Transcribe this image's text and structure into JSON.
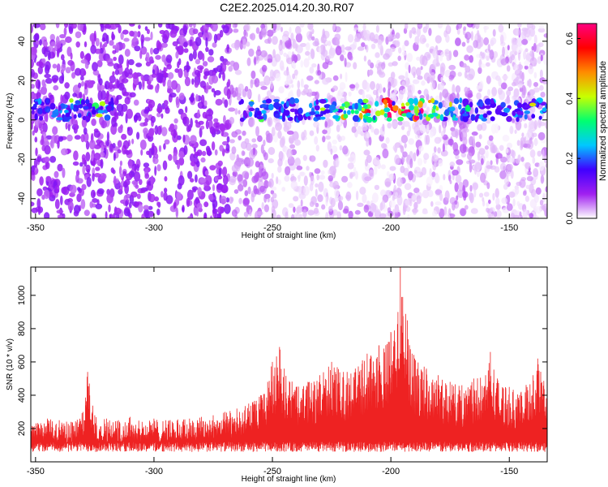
{
  "figure_title": "C2E2.2025.014.20.30.R07",
  "chart_data": [
    {
      "type": "heatmap",
      "xlabel": "Height of straight line (km)",
      "ylabel": "Frequency (Hz)",
      "xlim": [
        -352,
        -134
      ],
      "ylim": [
        -50,
        49
      ],
      "x_ticks": [
        -350,
        -300,
        -250,
        -200,
        -150
      ],
      "y_ticks": [
        -40,
        -20,
        0,
        20,
        40
      ],
      "colorbar": {
        "label": "Normalized spectral amplitude",
        "range": [
          0.0,
          0.65
        ],
        "ticks": [
          0.0,
          0.2,
          0.4,
          0.6
        ],
        "colormap": [
          "#ffffff",
          "#a020f0",
          "#4000ff",
          "#00c8ff",
          "#00ff70",
          "#c8ff00",
          "#ff8c00",
          "#ff0000",
          "#ff0080"
        ]
      },
      "signal_band": {
        "frequency_center_hz": 5,
        "segments": [
          [
            -352,
            -317
          ],
          [
            -264,
            -134
          ]
        ],
        "peak_height_km": -200,
        "peak_amplitude": 0.6
      }
    },
    {
      "type": "line",
      "xlabel": "Height of straight line (km)",
      "ylabel": "SNR (10 * v/v)",
      "xlim": [
        -352,
        -134
      ],
      "ylim": [
        0,
        1170
      ],
      "x_ticks": [
        -350,
        -300,
        -250,
        -200,
        -150
      ],
      "y_ticks": [
        200,
        400,
        600,
        800,
        1000
      ],
      "color": "#ee2222",
      "series": [
        {
          "x": [
            -352,
            -345,
            -340,
            -335,
            -330,
            -328,
            -325,
            -320,
            -315,
            -310,
            -305,
            -300,
            -295,
            -290,
            -285,
            -280,
            -275,
            -270,
            -265,
            -260,
            -255,
            -252,
            -250,
            -247,
            -245,
            -240,
            -235,
            -230,
            -225,
            -220,
            -215,
            -212,
            -210,
            -205,
            -203,
            -200,
            -197,
            -196,
            -195,
            -193,
            -190,
            -185,
            -180,
            -175,
            -170,
            -165,
            -160,
            -158,
            -155,
            -150,
            -145,
            -140,
            -138,
            -134
          ],
          "y": [
            220,
            260,
            250,
            240,
            300,
            540,
            280,
            260,
            250,
            270,
            240,
            260,
            250,
            255,
            260,
            270,
            280,
            300,
            320,
            350,
            400,
            480,
            600,
            690,
            560,
            450,
            480,
            520,
            600,
            540,
            560,
            610,
            650,
            700,
            680,
            780,
            900,
            1170,
            990,
            850,
            620,
            560,
            520,
            480,
            460,
            500,
            520,
            660,
            500,
            450,
            420,
            520,
            620,
            440
          ]
        }
      ]
    }
  ]
}
